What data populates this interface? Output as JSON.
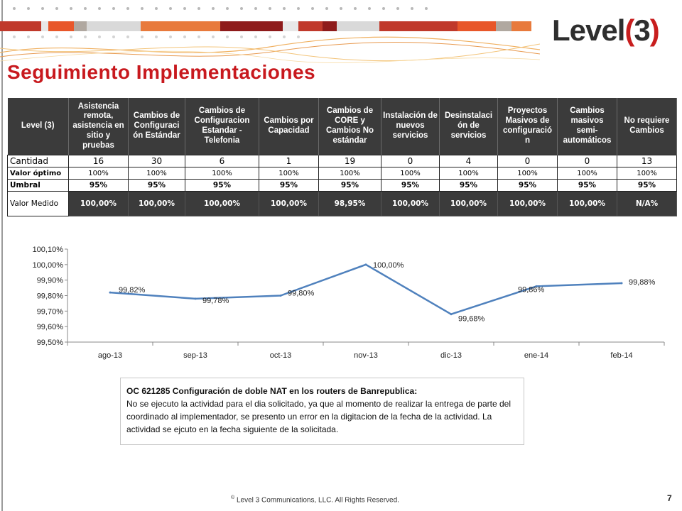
{
  "brand": {
    "logo_text": "Level",
    "logo_paren_open": "(",
    "logo_digit": "3",
    "logo_paren_close": ")"
  },
  "colors": {
    "title_red": "#c8191e",
    "header_dark": "#3b3b3b",
    "line_blue": "#4f81bd"
  },
  "slide": {
    "title": "Seguimiento  Implementaciones",
    "page_number": "7",
    "footer": "Level 3 Communications, LLC.  All Rights Reserved.",
    "footer_mark": "©"
  },
  "table": {
    "headers": [
      "Level (3)",
      "Asistencia remota, asistencia en sitio  y pruebas",
      "Cambios de Configuraci ón Estándar",
      "Cambios de Configuracion Estandar - Telefonia",
      "Cambios por Capacidad",
      "Cambios de CORE y Cambios No estándar",
      "Instalación de nuevos servicios",
      "Desinstalaci ón de servicios",
      "Proyectos Masivos de configuració n",
      "Cambios masivos semi-automáticos",
      "No requiere Cambios"
    ],
    "rows": [
      {
        "label": "Cantidad",
        "values": [
          "16",
          "30",
          "6",
          "1",
          "19",
          "0",
          "4",
          "0",
          "0",
          "13"
        ]
      },
      {
        "label": "Valor óptimo",
        "values": [
          "100%",
          "100%",
          "100%",
          "100%",
          "100%",
          "100%",
          "100%",
          "100%",
          "100%",
          "100%"
        ]
      },
      {
        "label": "Umbral",
        "values": [
          "95%",
          "95%",
          "95%",
          "95%",
          "95%",
          "95%",
          "95%",
          "95%",
          "95%",
          "95%"
        ]
      },
      {
        "label": "Valor Medido",
        "values": [
          "100,00%",
          "100,00%",
          "100,00%",
          "100,00%",
          "98,95%",
          "100,00%",
          "100,00%",
          "100,00%",
          "100,00%",
          "N/A%"
        ]
      }
    ]
  },
  "chart_data": {
    "type": "line",
    "categories": [
      "ago-13",
      "sep-13",
      "oct-13",
      "nov-13",
      "dic-13",
      "ene-14",
      "feb-14"
    ],
    "series": [
      {
        "values": [
          99.82,
          99.78,
          99.8,
          100.0,
          99.68,
          99.86,
          99.88
        ]
      }
    ],
    "data_labels": [
      "99,82%",
      "99,78%",
      "99,80%",
      "100,00%",
      "99,68%",
      "99,86%",
      "99,88%"
    ],
    "y_ticks": [
      "100,10%",
      "100,00%",
      "99,90%",
      "99,80%",
      "99,70%",
      "99,60%",
      "99,50%"
    ],
    "ylim": [
      99.5,
      100.1
    ],
    "grid": false,
    "legend": "none"
  },
  "note": {
    "heading": "OC 621285  Configuración de doble NAT en los routers de Banrepublica:",
    "body": "No se ejecuto la actividad para el dia solicitado, ya que  al momento de realizar la entrega de parte del coordinado al implementador, se presento un error en la digitacion de la fecha de la actividad. La actividad se ejcuto en la fecha siguiente de la solicitada."
  }
}
